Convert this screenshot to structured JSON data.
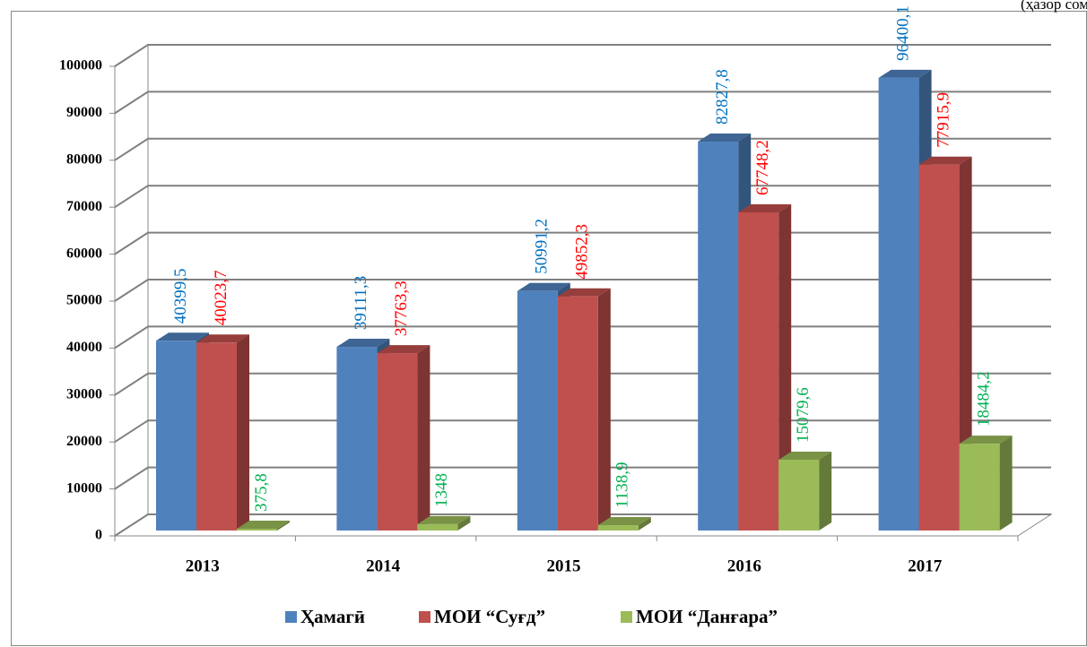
{
  "chart_data": {
    "type": "bar3d",
    "unit_note": "(ҳазор сом",
    "categories": [
      "2013",
      "2014",
      "2015",
      "2016",
      "2017"
    ],
    "series": [
      {
        "name": "Ҳамагӣ",
        "color": "#4f81bd",
        "label_color": "#0070c0",
        "values": [
          40399.5,
          39111.3,
          50991.2,
          82827.8,
          96400.1
        ],
        "value_labels": [
          "40399,5",
          "39111,3",
          "50991,2",
          "82827,8",
          "96400,1"
        ]
      },
      {
        "name": "МОИ “Суғд”",
        "color": "#c0504d",
        "label_color": "#ff0000",
        "values": [
          40023.7,
          37763.3,
          49852.3,
          67748.2,
          77915.9
        ],
        "value_labels": [
          "40023,7",
          "37763,3",
          "49852,3",
          "67748,2",
          "77915,9"
        ]
      },
      {
        "name": "МОИ “Данғара”",
        "color": "#9bbb59",
        "label_color": "#00b050",
        "values": [
          375.8,
          1348,
          1138.9,
          15079.6,
          18484.2
        ],
        "value_labels": [
          "375,8",
          "1348",
          "1138,9",
          "15079,6",
          "18484,2"
        ]
      }
    ],
    "ylim": [
      0,
      100000
    ],
    "yticks": [
      0,
      10000,
      20000,
      30000,
      40000,
      50000,
      60000,
      70000,
      80000,
      90000,
      100000
    ],
    "grid": true,
    "legend": "bottom"
  }
}
